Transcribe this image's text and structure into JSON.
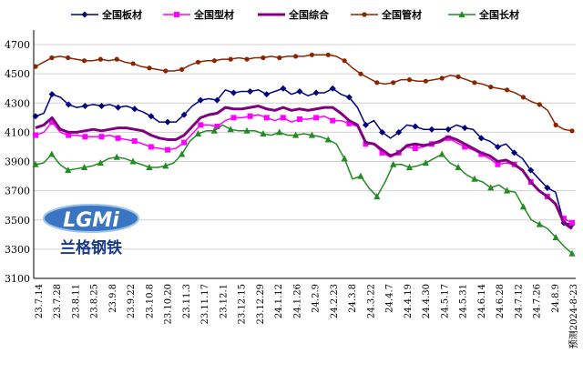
{
  "chart_data": {
    "type": "line",
    "ylim": [
      3100,
      4800
    ],
    "yticks": [
      3100,
      3300,
      3500,
      3700,
      3900,
      4100,
      4300,
      4500,
      4700
    ],
    "x_tick_labels": [
      "23.7.14",
      "23.7.28",
      "23.8.11",
      "23.8.25",
      "23.9.8",
      "23.9.22",
      "23.10.8",
      "23.10.20",
      "23.11.3",
      "23.11.17",
      "23.12.1",
      "23.12.15",
      "23.12.29",
      "24.1.12",
      "24.1.26",
      "24.2.9",
      "24.2.23",
      "24.3.8",
      "24.3.22",
      "24.4.7",
      "24.4.19",
      "24.4.30",
      "24.5.17",
      "24.5.31",
      "24.6.14",
      "24.6.28",
      "24.7.12",
      "24.7.26",
      "24.8.9",
      "预测2024-8-23"
    ],
    "series": [
      {
        "name": "全国板材",
        "color": "#000080",
        "marker": "diamond",
        "values": [
          4210,
          4230,
          4360,
          4340,
          4290,
          4270,
          4280,
          4290,
          4280,
          4290,
          4270,
          4280,
          4260,
          4240,
          4210,
          4170,
          4170,
          4170,
          4220,
          4280,
          4320,
          4330,
          4320,
          4390,
          4370,
          4380,
          4380,
          4390,
          4360,
          4380,
          4400,
          4360,
          4380,
          4350,
          4370,
          4370,
          4400,
          4360,
          4340,
          4270,
          4150,
          4180,
          4100,
          4060,
          4100,
          4150,
          4140,
          4120,
          4120,
          4120,
          4120,
          4150,
          4130,
          4120,
          4060,
          4040,
          4000,
          4020,
          3960,
          3920,
          3840,
          3780,
          3720,
          3690,
          3480,
          3470
        ]
      },
      {
        "name": "全国型材",
        "color": "#ff00ff",
        "marker": "square",
        "values": [
          4080,
          4100,
          4170,
          4100,
          4080,
          4080,
          4070,
          4070,
          4070,
          4080,
          4060,
          4050,
          4040,
          4020,
          4000,
          3990,
          3980,
          3990,
          4030,
          4090,
          4150,
          4150,
          4140,
          4180,
          4200,
          4200,
          4210,
          4220,
          4200,
          4180,
          4200,
          4170,
          4190,
          4190,
          4200,
          4210,
          4180,
          4180,
          4160,
          4140,
          4020,
          4020,
          3960,
          3930,
          3960,
          4000,
          3990,
          4000,
          4020,
          4030,
          4060,
          4030,
          4000,
          3980,
          3950,
          3920,
          3880,
          3890,
          3880,
          3840,
          3760,
          3700,
          3660,
          3600,
          3510,
          3480
        ]
      },
      {
        "name": "全国综合",
        "color": "#800080",
        "marker": "none",
        "values": [
          4130,
          4150,
          4200,
          4120,
          4100,
          4100,
          4110,
          4120,
          4110,
          4120,
          4130,
          4130,
          4120,
          4110,
          4080,
          4060,
          4050,
          4050,
          4080,
          4140,
          4200,
          4220,
          4230,
          4270,
          4260,
          4260,
          4270,
          4280,
          4260,
          4250,
          4270,
          4250,
          4260,
          4250,
          4260,
          4270,
          4270,
          4230,
          4180,
          4150,
          4030,
          4020,
          3980,
          3940,
          3960,
          4010,
          4020,
          4010,
          4020,
          4040,
          4070,
          4050,
          4020,
          3990,
          3960,
          3940,
          3900,
          3910,
          3880,
          3840,
          3760,
          3700,
          3660,
          3610,
          3480,
          3440
        ]
      },
      {
        "name": "全国管材",
        "color": "#8b2500",
        "marker": "circle",
        "values": [
          4550,
          4580,
          4610,
          4620,
          4610,
          4600,
          4590,
          4590,
          4600,
          4590,
          4600,
          4580,
          4570,
          4550,
          4540,
          4530,
          4520,
          4520,
          4530,
          4560,
          4580,
          4590,
          4590,
          4600,
          4600,
          4610,
          4600,
          4610,
          4610,
          4620,
          4610,
          4620,
          4620,
          4620,
          4630,
          4630,
          4630,
          4620,
          4590,
          4540,
          4500,
          4470,
          4440,
          4430,
          4440,
          4460,
          4460,
          4450,
          4450,
          4460,
          4470,
          4490,
          4480,
          4460,
          4440,
          4430,
          4410,
          4400,
          4390,
          4370,
          4340,
          4310,
          4290,
          4250,
          4150,
          4120,
          4110
        ]
      },
      {
        "name": "全国长材",
        "color": "#228b22",
        "marker": "triangle",
        "values": [
          3880,
          3890,
          3950,
          3880,
          3840,
          3850,
          3860,
          3870,
          3890,
          3920,
          3930,
          3920,
          3900,
          3880,
          3860,
          3860,
          3870,
          3890,
          3950,
          4040,
          4090,
          4110,
          4110,
          4150,
          4120,
          4110,
          4110,
          4110,
          4090,
          4080,
          4100,
          4080,
          4080,
          4090,
          4080,
          4070,
          4050,
          4020,
          3920,
          3780,
          3800,
          3720,
          3660,
          3760,
          3880,
          3880,
          3860,
          3870,
          3890,
          3920,
          3950,
          3890,
          3860,
          3810,
          3780,
          3760,
          3720,
          3740,
          3700,
          3690,
          3590,
          3500,
          3470,
          3440,
          3380,
          3320,
          3270
        ]
      }
    ]
  },
  "logo": {
    "text": "LGMi",
    "brand_cn": "兰格钢铁"
  },
  "colors": {
    "background": "#ffffff",
    "grid": "#d0d0d0"
  }
}
